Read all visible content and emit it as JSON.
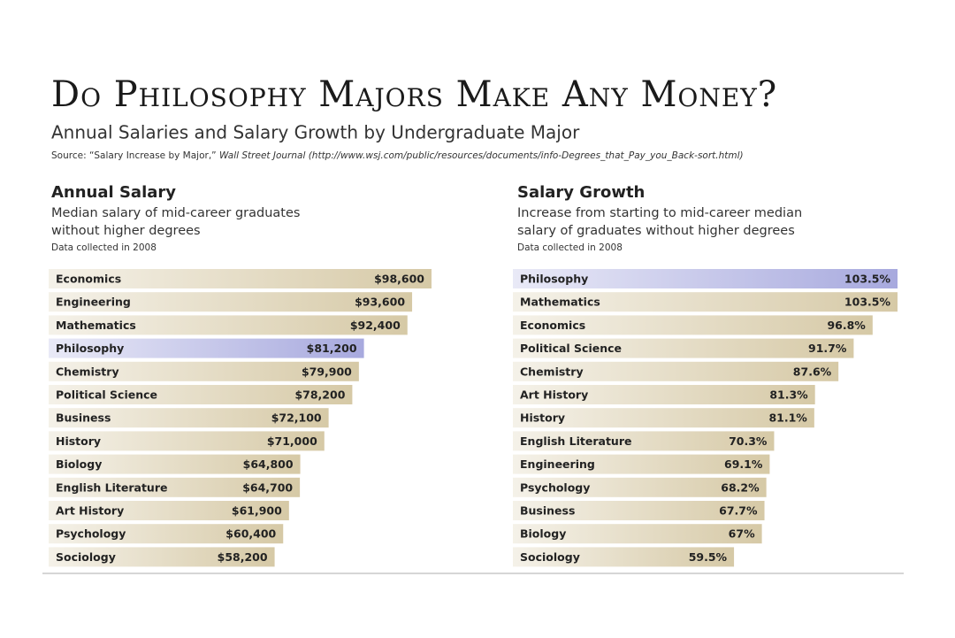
{
  "title": "Do Philosophy Majors Make Any Money?",
  "subtitle": "Annual Salaries and Salary Growth by Undergraduate Major",
  "source": [
    "Source: “Salary Increase by Major,” ",
    "Wall Street Journal",
    " (http://www.wsj.com/public/resources/documents/info-Degrees_that_Pay_you_Back-sort.html)"
  ],
  "chart_data": [
    {
      "type": "bar",
      "orientation": "horizontal",
      "title": "Annual Salary",
      "subtitle": [
        "Median salary of mid-career graduates",
        "without higher degrees"
      ],
      "note": "Data collected in 2008",
      "categories": [
        "Economics",
        "Engineering",
        "Mathematics",
        "Philosophy",
        "Chemistry",
        "Political Science",
        "Business",
        "History",
        "Biology",
        "English Literature",
        "Art History",
        "Psychology",
        "Sociology"
      ],
      "values": [
        98600,
        93600,
        92400,
        81200,
        79900,
        78200,
        72100,
        71000,
        64800,
        64700,
        61900,
        60400,
        58200
      ],
      "value_labels": [
        "$98,600",
        "$93,600",
        "$92,400",
        "$81,200",
        "$79,900",
        "$78,200",
        "$72,100",
        "$71,000",
        "$64,800",
        "$64,700",
        "$61,900",
        "$60,400",
        "$58,200"
      ],
      "color": "#d6c9a6",
      "highlight": "Philosophy",
      "highlight_color": "#a7a9de"
    },
    {
      "type": "bar",
      "orientation": "horizontal",
      "title": "Salary Growth",
      "subtitle": [
        "Increase from starting to mid-career median",
        "salary of graduates without higher degrees"
      ],
      "note": "Data collected in 2008",
      "categories": [
        "Philosophy",
        "Mathematics",
        "Economics",
        "Political Science",
        "Chemistry",
        "Art History",
        "History",
        "English Literature",
        "Engineering",
        "Psychology",
        "Business",
        "Biology",
        "Sociology"
      ],
      "values": [
        103.5,
        103.5,
        96.8,
        91.7,
        87.6,
        81.3,
        81.1,
        70.3,
        69.1,
        68.2,
        67.7,
        67,
        59.5
      ],
      "value_labels": [
        "103.5%",
        "103.5%",
        "96.8%",
        "91.7%",
        "87.6%",
        "81.3%",
        "81.1%",
        "70.3%",
        "69.1%",
        "68.2%",
        "67.7%",
        "67%",
        "59.5%"
      ],
      "color": "#d6c9a6",
      "highlight": "Philosophy",
      "highlight_color": "#a7a9de"
    }
  ]
}
